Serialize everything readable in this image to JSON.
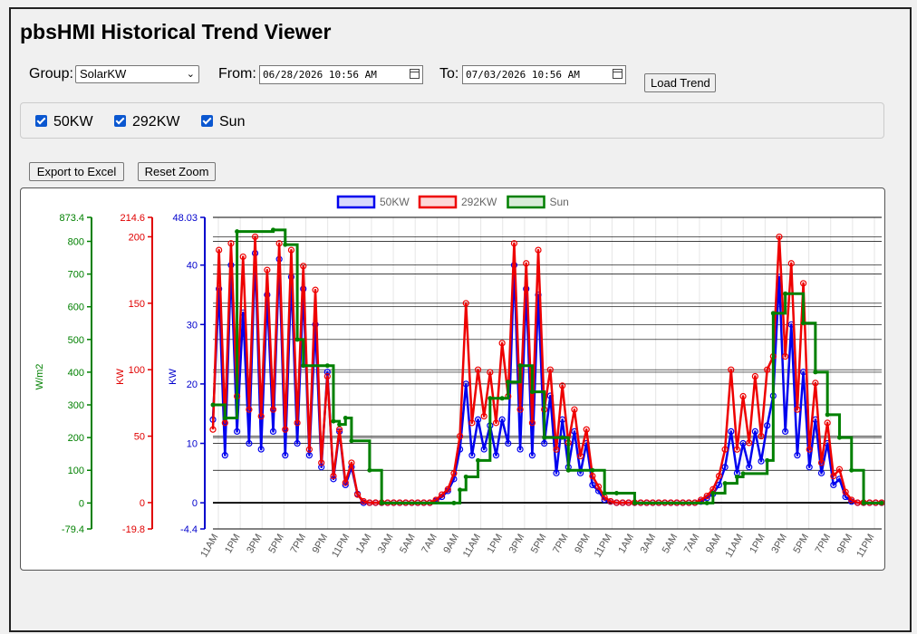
{
  "page": {
    "title": "pbsHMI Historical Trend Viewer"
  },
  "filters": {
    "group_label": "Group:",
    "group_value": "SolarKW",
    "from_label": "From:",
    "from_value": "06/28/2026 10:56 AM",
    "to_label": "To:",
    "to_value": "07/03/2026 10:56 AM",
    "load_label": "Load Trend"
  },
  "series_toggles": [
    {
      "label": "50KW",
      "checked": true
    },
    {
      "label": "292KW",
      "checked": true
    },
    {
      "label": "Sun",
      "checked": true
    }
  ],
  "actions": {
    "export_label": "Export to Excel",
    "reset_label": "Reset Zoom"
  },
  "icons": {
    "calendar": "calendar-icon",
    "dropdown": "chevron-down-icon",
    "check": "checkmark-icon"
  },
  "chart_data": {
    "type": "line",
    "legend_position": "top-center",
    "grid": true,
    "x_ticks": [
      "11AM",
      "1PM",
      "3PM",
      "5PM",
      "7PM",
      "9PM",
      "11PM",
      "1AM",
      "3AM",
      "5AM",
      "7AM",
      "9AM",
      "11AM",
      "1PM",
      "3PM",
      "5PM",
      "7PM",
      "9PM",
      "11PM",
      "1AM",
      "3AM",
      "5AM",
      "7AM",
      "9AM",
      "11AM",
      "1PM",
      "3PM",
      "5PM",
      "7PM",
      "9PM",
      "11PM"
    ],
    "axes": [
      {
        "id": "w",
        "label": "W/m2",
        "color": "#008000",
        "min": -79.4,
        "max": 873.4,
        "ticks": [
          -79.4,
          0,
          100,
          200,
          300,
          400,
          500,
          600,
          700,
          800,
          873.4
        ]
      },
      {
        "id": "kw2",
        "label": "KW",
        "color": "#e00000",
        "min": -19.8,
        "max": 214.6,
        "ticks": [
          -19.8,
          0,
          50,
          100,
          150,
          200,
          214.6
        ]
      },
      {
        "id": "kw1",
        "label": "KW",
        "color": "#0000cc",
        "min": -4.4,
        "max": 48.03,
        "ticks": [
          -4.4,
          0,
          10,
          20,
          30,
          40,
          48.03
        ]
      }
    ],
    "series": [
      {
        "name": "50KW",
        "axis": "kw1",
        "color": "#0000ee",
        "points": [
          [
            0,
            14
          ],
          [
            1,
            36
          ],
          [
            2,
            8
          ],
          [
            3,
            40
          ],
          [
            4,
            12
          ],
          [
            5,
            32
          ],
          [
            6,
            10
          ],
          [
            7,
            42
          ],
          [
            8,
            9
          ],
          [
            9,
            35
          ],
          [
            10,
            12
          ],
          [
            11,
            41
          ],
          [
            12,
            8
          ],
          [
            13,
            38
          ],
          [
            14,
            10
          ],
          [
            15,
            36
          ],
          [
            16,
            8
          ],
          [
            17,
            30
          ],
          [
            18,
            6
          ],
          [
            19,
            22
          ],
          [
            20,
            4
          ],
          [
            21,
            12
          ],
          [
            22,
            3
          ],
          [
            23,
            6
          ],
          [
            24,
            1.5
          ],
          [
            25,
            0
          ],
          [
            26,
            0
          ],
          [
            27,
            0
          ],
          [
            28,
            0
          ],
          [
            29,
            0
          ],
          [
            30,
            0
          ],
          [
            31,
            0
          ],
          [
            32,
            0
          ],
          [
            33,
            0
          ],
          [
            34,
            0
          ],
          [
            35,
            0
          ],
          [
            36,
            0
          ],
          [
            37,
            0.3
          ],
          [
            38,
            1
          ],
          [
            39,
            2
          ],
          [
            40,
            4
          ],
          [
            41,
            9
          ],
          [
            42,
            20
          ],
          [
            43,
            8
          ],
          [
            44,
            14
          ],
          [
            45,
            9
          ],
          [
            46,
            13
          ],
          [
            47,
            8
          ],
          [
            48,
            14
          ],
          [
            49,
            10
          ],
          [
            50,
            40
          ],
          [
            51,
            9
          ],
          [
            52,
            36
          ],
          [
            53,
            8
          ],
          [
            54,
            35
          ],
          [
            55,
            10
          ],
          [
            56,
            18
          ],
          [
            57,
            5
          ],
          [
            58,
            14
          ],
          [
            59,
            6
          ],
          [
            60,
            12
          ],
          [
            61,
            5
          ],
          [
            62,
            10
          ],
          [
            63,
            3
          ],
          [
            64,
            2
          ],
          [
            65,
            0.5
          ],
          [
            66,
            0.2
          ],
          [
            67,
            0
          ],
          [
            68,
            0
          ],
          [
            69,
            0
          ],
          [
            70,
            0
          ],
          [
            71,
            0
          ],
          [
            72,
            0
          ],
          [
            73,
            0
          ],
          [
            74,
            0
          ],
          [
            75,
            0
          ],
          [
            76,
            0
          ],
          [
            77,
            0
          ],
          [
            78,
            0
          ],
          [
            79,
            0
          ],
          [
            80,
            0
          ],
          [
            81,
            0.2
          ],
          [
            82,
            0.8
          ],
          [
            83,
            1.5
          ],
          [
            84,
            3
          ],
          [
            85,
            6
          ],
          [
            86,
            12
          ],
          [
            87,
            5
          ],
          [
            88,
            10
          ],
          [
            89,
            6
          ],
          [
            90,
            12
          ],
          [
            91,
            7
          ],
          [
            92,
            13
          ],
          [
            93,
            18
          ],
          [
            94,
            38
          ],
          [
            95,
            12
          ],
          [
            96,
            30
          ],
          [
            97,
            8
          ],
          [
            98,
            22
          ],
          [
            99,
            6
          ],
          [
            100,
            14
          ],
          [
            101,
            5
          ],
          [
            102,
            10
          ],
          [
            103,
            3
          ],
          [
            104,
            4
          ],
          [
            105,
            1
          ],
          [
            106,
            0.2
          ],
          [
            107,
            0
          ],
          [
            108,
            0
          ],
          [
            109,
            0
          ],
          [
            110,
            0
          ],
          [
            111,
            0
          ]
        ]
      },
      {
        "name": "292KW",
        "axis": "kw2",
        "color": "#ee0000",
        "points": [
          [
            0,
            55
          ],
          [
            1,
            190
          ],
          [
            2,
            60
          ],
          [
            3,
            195
          ],
          [
            4,
            80
          ],
          [
            5,
            185
          ],
          [
            6,
            70
          ],
          [
            7,
            200
          ],
          [
            8,
            65
          ],
          [
            9,
            175
          ],
          [
            10,
            70
          ],
          [
            11,
            195
          ],
          [
            12,
            55
          ],
          [
            13,
            190
          ],
          [
            14,
            60
          ],
          [
            15,
            178
          ],
          [
            16,
            40
          ],
          [
            17,
            160
          ],
          [
            18,
            30
          ],
          [
            19,
            95
          ],
          [
            20,
            20
          ],
          [
            21,
            55
          ],
          [
            22,
            15
          ],
          [
            23,
            30
          ],
          [
            24,
            6
          ],
          [
            25,
            1
          ],
          [
            26,
            0
          ],
          [
            27,
            0
          ],
          [
            28,
            0
          ],
          [
            29,
            0
          ],
          [
            30,
            0
          ],
          [
            31,
            0
          ],
          [
            32,
            0
          ],
          [
            33,
            0
          ],
          [
            34,
            0
          ],
          [
            35,
            0
          ],
          [
            36,
            0
          ],
          [
            37,
            2
          ],
          [
            38,
            6
          ],
          [
            39,
            10
          ],
          [
            40,
            22
          ],
          [
            41,
            50
          ],
          [
            42,
            150
          ],
          [
            43,
            60
          ],
          [
            44,
            100
          ],
          [
            45,
            65
          ],
          [
            46,
            98
          ],
          [
            47,
            60
          ],
          [
            48,
            120
          ],
          [
            49,
            80
          ],
          [
            50,
            195
          ],
          [
            51,
            70
          ],
          [
            52,
            180
          ],
          [
            53,
            60
          ],
          [
            54,
            190
          ],
          [
            55,
            70
          ],
          [
            56,
            100
          ],
          [
            57,
            40
          ],
          [
            58,
            88
          ],
          [
            59,
            45
          ],
          [
            60,
            70
          ],
          [
            61,
            35
          ],
          [
            62,
            55
          ],
          [
            63,
            20
          ],
          [
            64,
            12
          ],
          [
            65,
            4
          ],
          [
            66,
            1
          ],
          [
            67,
            0
          ],
          [
            68,
            0
          ],
          [
            69,
            0
          ],
          [
            70,
            0
          ],
          [
            71,
            0
          ],
          [
            72,
            0
          ],
          [
            73,
            0
          ],
          [
            74,
            0
          ],
          [
            75,
            0
          ],
          [
            76,
            0
          ],
          [
            77,
            0
          ],
          [
            78,
            0
          ],
          [
            79,
            0
          ],
          [
            80,
            0
          ],
          [
            81,
            2
          ],
          [
            82,
            5
          ],
          [
            83,
            10
          ],
          [
            84,
            20
          ],
          [
            85,
            40
          ],
          [
            86,
            100
          ],
          [
            87,
            40
          ],
          [
            88,
            80
          ],
          [
            89,
            45
          ],
          [
            90,
            95
          ],
          [
            91,
            50
          ],
          [
            92,
            100
          ],
          [
            93,
            110
          ],
          [
            94,
            200
          ],
          [
            95,
            110
          ],
          [
            96,
            180
          ],
          [
            97,
            70
          ],
          [
            98,
            165
          ],
          [
            99,
            40
          ],
          [
            100,
            90
          ],
          [
            101,
            30
          ],
          [
            102,
            60
          ],
          [
            103,
            20
          ],
          [
            104,
            25
          ],
          [
            105,
            8
          ],
          [
            106,
            2
          ],
          [
            107,
            0
          ],
          [
            108,
            0
          ],
          [
            109,
            0
          ],
          [
            110,
            0
          ],
          [
            111,
            0
          ]
        ]
      },
      {
        "name": "Sun",
        "axis": "w",
        "color": "#008000",
        "steps": [
          [
            0,
            300
          ],
          [
            2,
            260
          ],
          [
            4,
            830
          ],
          [
            10,
            835
          ],
          [
            12,
            790
          ],
          [
            14,
            500
          ],
          [
            15,
            420
          ],
          [
            19,
            420
          ],
          [
            20,
            250
          ],
          [
            21,
            240
          ],
          [
            22,
            260
          ],
          [
            23,
            190
          ],
          [
            26,
            100
          ],
          [
            28,
            0
          ],
          [
            40,
            0
          ],
          [
            41,
            40
          ],
          [
            42,
            80
          ],
          [
            44,
            130
          ],
          [
            46,
            320
          ],
          [
            48,
            320
          ],
          [
            49,
            370
          ],
          [
            51,
            420
          ],
          [
            53,
            340
          ],
          [
            55,
            200
          ],
          [
            58,
            200
          ],
          [
            59,
            100
          ],
          [
            63,
            100
          ],
          [
            65,
            30
          ],
          [
            67,
            30
          ],
          [
            70,
            0
          ],
          [
            82,
            0
          ],
          [
            83,
            30
          ],
          [
            85,
            60
          ],
          [
            87,
            80
          ],
          [
            88,
            90
          ],
          [
            92,
            130
          ],
          [
            93,
            580
          ],
          [
            95,
            640
          ],
          [
            98,
            550
          ],
          [
            100,
            400
          ],
          [
            102,
            270
          ],
          [
            104,
            200
          ],
          [
            106,
            100
          ],
          [
            108,
            0
          ],
          [
            111,
            0
          ]
        ]
      }
    ]
  }
}
